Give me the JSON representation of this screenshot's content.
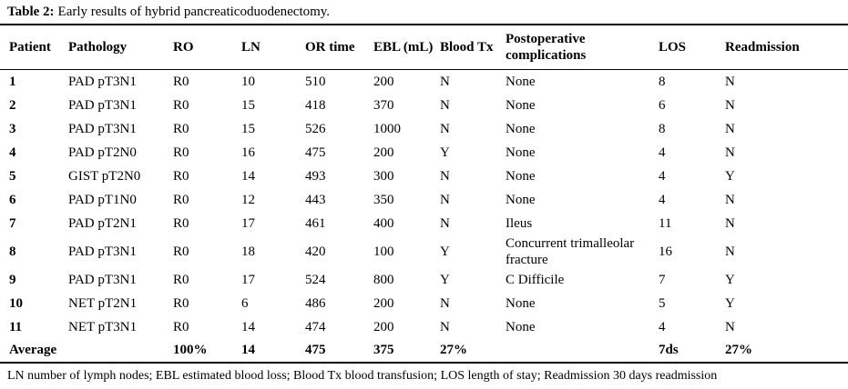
{
  "page": {
    "colors": {
      "background": "#ffffff",
      "text": "#000000",
      "rule": "#000000"
    }
  },
  "table": {
    "title_label": "Table 2:",
    "title_caption": "Early results of hybrid pancreaticoduodenectomy.",
    "columns": [
      "Patient",
      "Pathology",
      "RO",
      "LN",
      "OR time",
      "EBL (mL)",
      "Blood Tx",
      "Postoperative complications",
      "LOS",
      "Readmission"
    ],
    "rows": [
      [
        "1",
        "PAD pT3N1",
        "R0",
        "10",
        "510",
        "200",
        "N",
        "None",
        "8",
        "N"
      ],
      [
        "2",
        "PAD pT3N1",
        "R0",
        "15",
        "418",
        "370",
        "N",
        "None",
        "6",
        "N"
      ],
      [
        "3",
        "PAD pT3N1",
        "R0",
        "15",
        "526",
        "1000",
        "N",
        "None",
        "8",
        "N"
      ],
      [
        "4",
        "PAD pT2N0",
        "R0",
        "16",
        "475",
        "200",
        "Y",
        "None",
        "4",
        "N"
      ],
      [
        "5",
        "GIST pT2N0",
        "R0",
        "14",
        "493",
        "300",
        "N",
        "None",
        "4",
        "Y"
      ],
      [
        "6",
        "PAD pT1N0",
        "R0",
        "12",
        "443",
        "350",
        "N",
        "None",
        "4",
        "N"
      ],
      [
        "7",
        "PAD pT2N1",
        "R0",
        "17",
        "461",
        "400",
        "N",
        "Ileus",
        "11",
        "N"
      ],
      [
        "8",
        "PAD pT3N1",
        "R0",
        "18",
        "420",
        "100",
        "Y",
        "Concurrent trimalleolar fracture",
        "16",
        "N"
      ],
      [
        "9",
        "PAD pT3N1",
        "R0",
        "17",
        "524",
        "800",
        "Y",
        "C Difficile",
        "7",
        "Y"
      ],
      [
        "10",
        "NET pT2N1",
        "R0",
        "6",
        "486",
        "200",
        "N",
        "None",
        "5",
        "Y"
      ],
      [
        "11",
        "NET pT3N1",
        "R0",
        "14",
        "474",
        "200",
        "N",
        "None",
        "4",
        "N"
      ]
    ],
    "average_row": [
      "Average",
      "",
      "100%",
      "14",
      "475",
      "375",
      "27%",
      "",
      "7ds",
      "27%"
    ],
    "footnote": "LN number of lymph nodes; EBL estimated blood loss; Blood Tx blood transfusion; LOS length of stay; Readmission 30 days readmission"
  }
}
